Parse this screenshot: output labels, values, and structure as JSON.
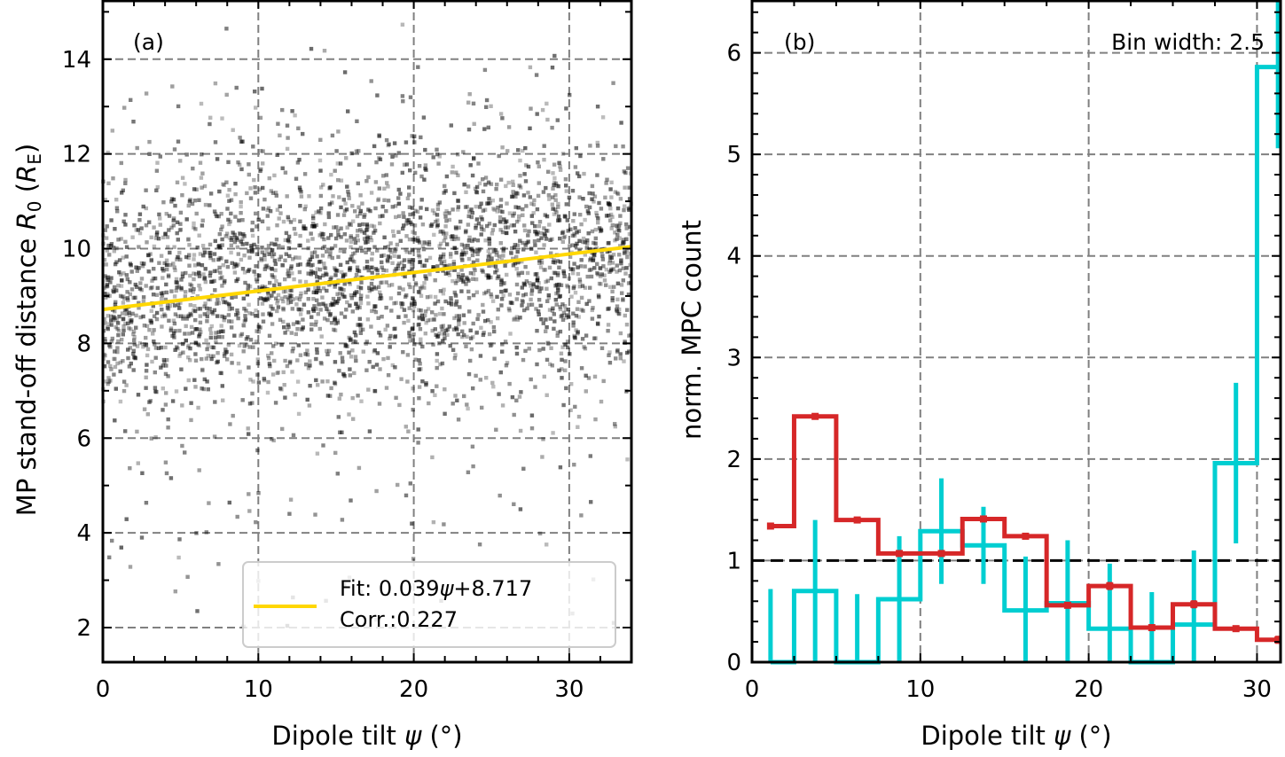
{
  "chart_data": [
    {
      "type": "scatter",
      "panel_label": "(a)",
      "title": "",
      "xlabel": "Dipole tilt ψ (°)",
      "xlabel_parts": {
        "prefix": "Dipole tilt ",
        "symbol": "ψ",
        "suffix": " (°)"
      },
      "ylabel": "MP stand-off distance R0 (RE)",
      "ylabel_parts": {
        "prefix": "MP stand-off distance ",
        "symbol": "R",
        "sub": "0",
        "open": " (",
        "unit": "R",
        "unit_sub": "E",
        "close": ")"
      },
      "xlim": [
        0,
        34
      ],
      "ylim": [
        1.27,
        15.25
      ],
      "xticks": [
        0,
        10,
        20,
        30
      ],
      "xtick_labels": [
        "0",
        "10",
        "20",
        "30"
      ],
      "yticks": [
        2,
        4,
        6,
        8,
        10,
        12,
        14
      ],
      "ytick_labels": [
        "2",
        "4",
        "6",
        "8",
        "10",
        "12",
        "14"
      ],
      "grid": true,
      "point_color": "#000000",
      "point_alpha": 0.35,
      "scatter_description": "Approximately 3000 MPC events; dense cloud 7-11 RE, sparse outliers 2-14 RE across tilt 0-34°",
      "scatter_density_profile": {
        "x_range": [
          0,
          34
        ],
        "core_mean_y_at_x0": 8.9,
        "core_mean_y_at_x34": 9.9,
        "core_std_y": 1.25,
        "n_points_approx": 3000
      },
      "fit_line": {
        "slope": 0.039,
        "intercept": 8.717,
        "color": "#FFD700",
        "x_range": [
          0,
          34
        ]
      },
      "legend": {
        "placement": "lower-right",
        "entries": [
          {
            "line1": "Fit: 0.039ψ+8.717",
            "line1_parts": {
              "prefix": "Fit: 0.039",
              "symbol": "ψ",
              "suffix": "+8.717"
            },
            "line2": "Corr.:0.227",
            "color": "#FFD700"
          }
        ]
      }
    },
    {
      "type": "histogram-step",
      "panel_label": "(b)",
      "annotation": "Bin width: 2.5",
      "title": "",
      "xlabel": "Dipole tilt ψ (°)",
      "xlabel_parts": {
        "prefix": "Dipole tilt ",
        "symbol": "ψ",
        "suffix": " (°)"
      },
      "ylabel": "norm. MPC count",
      "xlim": [
        0,
        31.4
      ],
      "ylim": [
        0,
        6.52
      ],
      "xticks": [
        0,
        10,
        20,
        30
      ],
      "xtick_labels": [
        "0",
        "10",
        "20",
        "30"
      ],
      "yticks": [
        0,
        1,
        2,
        3,
        4,
        5,
        6
      ],
      "ytick_labels": [
        "0",
        "1",
        "2",
        "3",
        "4",
        "5",
        "6"
      ],
      "grid": true,
      "reference_line": {
        "y": 1,
        "color": "#000000",
        "style": "dashed"
      },
      "bin_edges": [
        1.1,
        2.5,
        5.0,
        7.5,
        10.0,
        12.5,
        15.0,
        17.5,
        20.0,
        22.5,
        25.0,
        27.5,
        30.0,
        31.4
      ],
      "bin_centers": [
        1.1,
        3.75,
        6.25,
        8.75,
        11.25,
        13.75,
        16.25,
        18.75,
        21.25,
        23.75,
        26.25,
        28.75,
        31.25
      ],
      "series": [
        {
          "name": "red",
          "color": "#D62728",
          "values": [
            1.34,
            2.42,
            1.4,
            1.07,
            1.07,
            1.41,
            1.24,
            0.56,
            0.75,
            0.34,
            0.57,
            0.33,
            0.22
          ],
          "errors": [
            0.03,
            0.03,
            0.03,
            0.03,
            0.03,
            0.03,
            0.02,
            0.03,
            0.04,
            0.03,
            0.04,
            0.03,
            0.04
          ]
        },
        {
          "name": "cyan",
          "color": "#00CED1",
          "values": [
            0.0,
            0.7,
            0.0,
            0.62,
            1.29,
            1.15,
            0.51,
            0.58,
            0.33,
            0.0,
            0.37,
            1.96,
            5.86
          ],
          "errors": [
            0.72,
            0.7,
            0.67,
            0.62,
            0.52,
            0.38,
            0.53,
            0.62,
            0.64,
            0.69,
            0.73,
            0.79,
            0.8
          ]
        }
      ]
    }
  ]
}
